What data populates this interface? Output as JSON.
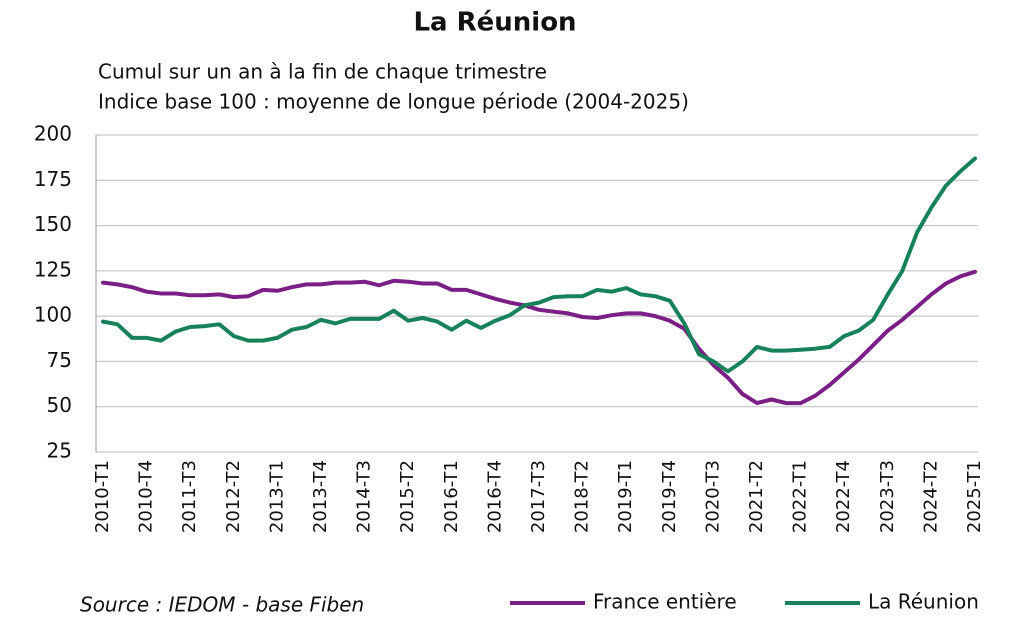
{
  "chart_data": {
    "type": "line",
    "title": "La Réunion",
    "subtitle": [
      "Cumul sur un an à la fin de chaque trimestre",
      "Indice base 100 : moyenne de longue période (2004-2025)"
    ],
    "source": "Source : IEDOM - base Fiben",
    "categories": [
      "2010-T1",
      null,
      null,
      "2010-T4",
      null,
      null,
      "2011-T3",
      null,
      null,
      "2012-T2",
      null,
      null,
      "2013-T1",
      null,
      null,
      "2013-T4",
      null,
      null,
      "2014-T3",
      null,
      null,
      "2015-T2",
      null,
      null,
      "2016-T1",
      null,
      null,
      "2016-T4",
      null,
      null,
      "2017-T3",
      null,
      null,
      "2018-T2",
      null,
      null,
      "2019-T1",
      null,
      null,
      "2019-T4",
      null,
      null,
      "2020-T3",
      null,
      null,
      "2021-T2",
      null,
      null,
      "2022-T1",
      null,
      null,
      "2022-T4",
      null,
      null,
      "2023-T3",
      null,
      null,
      "2024-T2",
      null,
      null,
      "2025-T1"
    ],
    "series": [
      {
        "name": "France entière",
        "color": "#7b1f86",
        "values": [
          118.5,
          117.5,
          116,
          113.5,
          112.5,
          112.5,
          111.5,
          111.5,
          112,
          110.5,
          111,
          114.5,
          114,
          116,
          117.5,
          117.5,
          118.5,
          118.5,
          119,
          117,
          119.5,
          119,
          118,
          118,
          114.5,
          114.5,
          112,
          109.5,
          107.5,
          106,
          103.5,
          102.5,
          101.5,
          99.5,
          99,
          100.5,
          101.5,
          101.5,
          100,
          97.5,
          93,
          82,
          73,
          66,
          57,
          52,
          54,
          52,
          52,
          56,
          62,
          69,
          76,
          84,
          92,
          98,
          105,
          112,
          118,
          122,
          124.5
        ]
      },
      {
        "name": "La Réunion",
        "color": "#17825a",
        "values": [
          97,
          95.5,
          88,
          88,
          86.5,
          91.5,
          94,
          94.5,
          95.5,
          89,
          86.5,
          86.5,
          88,
          92.5,
          94,
          98,
          96,
          98.5,
          98.5,
          98.5,
          103,
          97.5,
          99,
          97,
          92.5,
          97.5,
          93.5,
          97.5,
          100.5,
          106,
          107.5,
          110.5,
          111,
          111,
          114.5,
          113.5,
          115.5,
          112,
          111,
          108.5,
          96,
          79,
          75,
          69.5,
          75,
          83,
          81,
          81,
          81.5,
          82,
          83,
          89,
          92,
          98,
          112,
          125,
          146,
          160,
          172,
          180,
          187
        ]
      }
    ],
    "ylim": [
      25,
      200
    ],
    "yticks": [
      25,
      50,
      75,
      100,
      125,
      150,
      175,
      200
    ],
    "grid": true,
    "legend": "bottom-right"
  }
}
